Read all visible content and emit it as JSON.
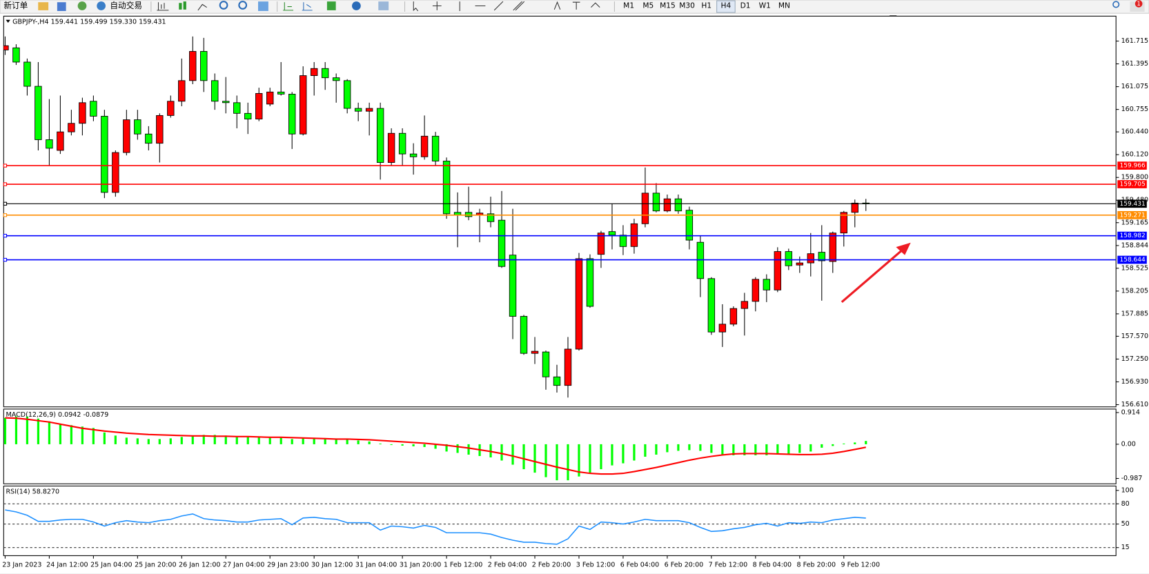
{
  "toolbar": {
    "buttons": [
      "新订单",
      "自动交易"
    ],
    "timeframes": [
      "M1",
      "M5",
      "M15",
      "M30",
      "H1",
      "H4",
      "D1",
      "W1",
      "MN"
    ],
    "alert_count": 1
  },
  "chart_data": [
    {
      "type": "candlestick",
      "title": "GBPJPY-,H4  159.441 159.499 159.330 159.431",
      "up_color": "#ff0000",
      "down_color": "#00ff00",
      "categories": [
        "23 Jan 2023",
        null,
        null,
        null,
        "24 Jan 12:00",
        null,
        null,
        null,
        "25 Jan 04:00",
        null,
        null,
        null,
        "25 Jan 20:00",
        null,
        null,
        null,
        "26 Jan 12:00",
        null,
        null,
        null,
        "27 Jan 04:00",
        null,
        null,
        null,
        "29 Jan 23:00",
        null,
        null,
        null,
        "30 Jan 12:00",
        null,
        null,
        null,
        "31 Jan 04:00",
        null,
        null,
        null,
        "31 Jan 20:00",
        null,
        null,
        null,
        "1 Feb 12:00",
        null,
        null,
        null,
        "2 Feb 04:00",
        null,
        null,
        null,
        "2 Feb 20:00",
        null,
        null,
        null,
        "3 Feb 12:00",
        null,
        null,
        null,
        "6 Feb 04:00",
        null,
        null,
        null,
        "6 Feb 20:00",
        null,
        null,
        null,
        "7 Feb 12:00",
        null,
        null,
        null,
        "8 Feb 04:00",
        null,
        null,
        null,
        "8 Feb 20:00",
        null,
        null,
        null,
        "9 Feb 12:00",
        null,
        null
      ],
      "open": [
        161.59,
        161.62,
        161.42,
        161.08,
        160.33,
        160.18,
        160.44,
        160.56,
        160.87,
        160.66,
        159.59,
        160.15,
        160.61,
        160.41,
        160.28,
        160.67,
        160.87,
        161.16,
        161.57,
        161.16,
        160.87,
        160.85,
        160.7,
        160.62,
        160.83,
        161.0,
        160.97,
        160.41,
        161.23,
        161.33,
        161.2,
        161.16,
        160.77,
        160.73,
        160.77,
        160.01,
        160.42,
        160.13,
        160.09,
        160.38,
        160.03,
        159.31,
        159.31,
        159.27,
        159.29,
        159.2,
        158.71,
        157.85,
        157.33,
        157.35,
        157.0,
        156.88,
        157.39,
        158.66,
        158.72,
        159.04,
        158.99,
        158.83,
        159.15,
        159.58,
        159.33,
        159.5,
        159.34,
        158.89,
        158.38,
        157.63,
        157.74,
        157.96,
        158.06,
        158.37,
        158.22,
        158.76,
        158.57,
        158.6,
        158.75,
        158.62,
        159.02,
        159.31,
        159.441
      ],
      "high": [
        161.78,
        161.67,
        161.47,
        161.42,
        160.9,
        160.95,
        160.75,
        160.92,
        160.95,
        160.75,
        160.18,
        160.75,
        160.75,
        160.52,
        160.7,
        160.95,
        161.47,
        161.78,
        161.76,
        161.26,
        161.21,
        160.95,
        160.85,
        161.06,
        161.06,
        161.42,
        161.0,
        161.36,
        161.42,
        161.42,
        161.26,
        161.18,
        160.85,
        160.85,
        160.85,
        160.49,
        160.49,
        160.28,
        160.67,
        160.44,
        160.08,
        159.59,
        159.67,
        159.36,
        159.53,
        159.61,
        159.36,
        157.87,
        157.56,
        157.37,
        157.17,
        157.56,
        158.74,
        158.72,
        159.05,
        159.43,
        159.13,
        159.22,
        159.94,
        159.72,
        159.56,
        159.56,
        159.39,
        158.98,
        158.4,
        158.02,
        157.99,
        158.18,
        158.4,
        158.44,
        158.82,
        158.8,
        158.69,
        159.02,
        159.13,
        159.04,
        159.33,
        159.49,
        159.499
      ],
      "low": [
        161.52,
        161.38,
        160.95,
        160.18,
        159.97,
        160.13,
        160.39,
        160.39,
        160.59,
        159.51,
        159.53,
        160.11,
        160.33,
        160.18,
        160.01,
        160.64,
        160.8,
        161.11,
        161.0,
        160.75,
        160.7,
        160.49,
        160.41,
        160.59,
        160.8,
        160.95,
        160.2,
        160.39,
        160.95,
        161.03,
        160.85,
        160.7,
        160.59,
        160.39,
        159.77,
        159.97,
        159.97,
        159.84,
        160.05,
        159.97,
        159.22,
        158.82,
        159.2,
        158.89,
        159.1,
        158.53,
        157.53,
        157.31,
        157.18,
        156.82,
        156.78,
        156.71,
        157.37,
        157.97,
        158.53,
        158.79,
        158.71,
        158.73,
        159.1,
        159.31,
        159.31,
        159.29,
        158.79,
        158.12,
        157.59,
        157.42,
        157.71,
        157.58,
        157.92,
        158.05,
        158.19,
        158.5,
        158.46,
        158.41,
        158.07,
        158.46,
        158.83,
        159.1,
        159.33
      ],
      "close": [
        161.65,
        161.42,
        161.08,
        160.33,
        160.21,
        160.44,
        160.56,
        160.85,
        160.66,
        159.59,
        160.15,
        160.61,
        160.41,
        160.28,
        160.67,
        160.87,
        161.16,
        161.57,
        161.16,
        160.87,
        160.85,
        160.7,
        160.62,
        160.98,
        161.0,
        160.97,
        160.41,
        161.23,
        161.33,
        161.2,
        161.16,
        160.77,
        160.73,
        160.77,
        160.01,
        160.42,
        160.13,
        160.09,
        160.38,
        160.03,
        159.29,
        159.27,
        159.25,
        159.3,
        159.18,
        158.55,
        157.85,
        157.33,
        157.36,
        157.0,
        156.88,
        157.39,
        158.66,
        157.99,
        159.02,
        158.99,
        158.83,
        159.15,
        159.58,
        159.33,
        159.5,
        159.33,
        158.92,
        158.38,
        157.63,
        157.74,
        157.96,
        158.06,
        158.37,
        158.22,
        158.76,
        158.56,
        158.6,
        158.73,
        158.63,
        159.02,
        159.31,
        159.44,
        159.431
      ],
      "ylim": [
        156.579,
        162.065
      ],
      "yticks": [
        161.715,
        161.395,
        161.075,
        160.755,
        {
          "value": 160.44,
          "label": "160.440"
        },
        {
          "value": 160.12,
          "label": "160.120"
        },
        {
          "value": 159.8,
          "label": "159.800"
        },
        {
          "value": 159.48,
          "label": "159.480"
        },
        159.165,
        158.844,
        158.525,
        158.205,
        157.885,
        {
          "value": 157.57,
          "label": "157.570"
        },
        {
          "value": 157.25,
          "label": "157.250"
        },
        {
          "value": 156.93,
          "label": "156.930"
        },
        {
          "value": 156.61,
          "label": "156.610"
        }
      ],
      "levels": [
        {
          "value": 159.966,
          "color": "#ff0000"
        },
        {
          "value": 159.705,
          "color": "#ff0000"
        },
        {
          "value": 159.431,
          "color": "#000000"
        },
        {
          "value": 159.271,
          "color": "#ff8c00"
        },
        {
          "value": 158.982,
          "color": "#0000ff"
        },
        {
          "value": 158.644,
          "color": "#0000ff"
        }
      ]
    },
    {
      "type": "macd",
      "title": "MACD(12,26,9) 0.0942 -0.0879",
      "ylim": [
        -1.142,
        1.015
      ],
      "yticks": [
        0.914,
        {
          "value": 0,
          "label": "0.00"
        },
        -0.987
      ],
      "series": [
        {
          "style": "bar",
          "color": "#00ff00",
          "values": [
            0.76,
            0.8,
            0.8,
            0.74,
            0.66,
            0.59,
            0.55,
            0.51,
            0.47,
            0.34,
            0.25,
            0.19,
            0.17,
            0.15,
            0.15,
            0.17,
            0.21,
            0.25,
            0.27,
            0.27,
            0.25,
            0.23,
            0.21,
            0.21,
            0.21,
            0.19,
            0.15,
            0.17,
            0.17,
            0.17,
            0.15,
            0.13,
            0.11,
            0.08,
            0.02,
            -0.02,
            -0.04,
            -0.06,
            -0.08,
            -0.13,
            -0.21,
            -0.25,
            -0.3,
            -0.34,
            -0.38,
            -0.47,
            -0.59,
            -0.72,
            -0.82,
            -0.95,
            -1.04,
            -1.04,
            -0.93,
            -0.82,
            -0.72,
            -0.61,
            -0.55,
            -0.47,
            -0.36,
            -0.3,
            -0.23,
            -0.19,
            -0.17,
            -0.19,
            -0.25,
            -0.3,
            -0.32,
            -0.32,
            -0.32,
            -0.32,
            -0.3,
            -0.27,
            -0.25,
            -0.21,
            -0.1,
            -0.05,
            0.02,
            0.05,
            0.0942
          ]
        },
        {
          "style": "line",
          "color": "#ff0000",
          "values": [
            0.76,
            0.75,
            0.72,
            0.68,
            0.64,
            0.58,
            0.52,
            0.46,
            0.42,
            0.38,
            0.35,
            0.32,
            0.3,
            0.28,
            0.27,
            0.26,
            0.25,
            0.24,
            0.24,
            0.23,
            0.23,
            0.22,
            0.22,
            0.21,
            0.2,
            0.2,
            0.19,
            0.18,
            0.17,
            0.16,
            0.15,
            0.15,
            0.14,
            0.13,
            0.11,
            0.09,
            0.07,
            0.05,
            0.03,
            0,
            -0.03,
            -0.07,
            -0.11,
            -0.16,
            -0.21,
            -0.27,
            -0.34,
            -0.42,
            -0.5,
            -0.58,
            -0.66,
            -0.73,
            -0.8,
            -0.84,
            -0.86,
            -0.86,
            -0.84,
            -0.79,
            -0.73,
            -0.67,
            -0.6,
            -0.53,
            -0.46,
            -0.4,
            -0.35,
            -0.31,
            -0.28,
            -0.27,
            -0.27,
            -0.27,
            -0.28,
            -0.29,
            -0.3,
            -0.3,
            -0.29,
            -0.26,
            -0.21,
            -0.15,
            -0.0879
          ]
        }
      ]
    },
    {
      "type": "line",
      "title": "RSI(14) 58.8270",
      "color": "#1e90ff",
      "ylim": [
        3,
        106.5
      ],
      "yticks": [
        100,
        80,
        50,
        15
      ],
      "levels": [
        80,
        50,
        15
      ],
      "values": [
        71,
        68,
        63,
        54,
        54,
        56,
        57,
        57,
        53,
        47,
        52,
        55,
        53,
        52,
        55,
        57,
        62,
        65,
        58,
        56,
        55,
        53,
        53,
        56,
        57,
        58,
        49,
        59,
        60,
        58,
        57,
        52,
        52,
        52,
        41,
        47,
        46,
        44,
        48,
        45,
        37,
        37,
        37,
        37,
        35,
        30,
        26,
        23,
        23,
        21,
        20,
        28,
        47,
        42,
        53,
        52,
        50,
        53,
        57,
        55,
        55,
        55,
        52,
        45,
        39,
        40,
        43,
        45,
        49,
        51,
        47,
        52,
        51,
        53,
        52,
        56,
        58,
        60,
        58.827
      ]
    }
  ]
}
